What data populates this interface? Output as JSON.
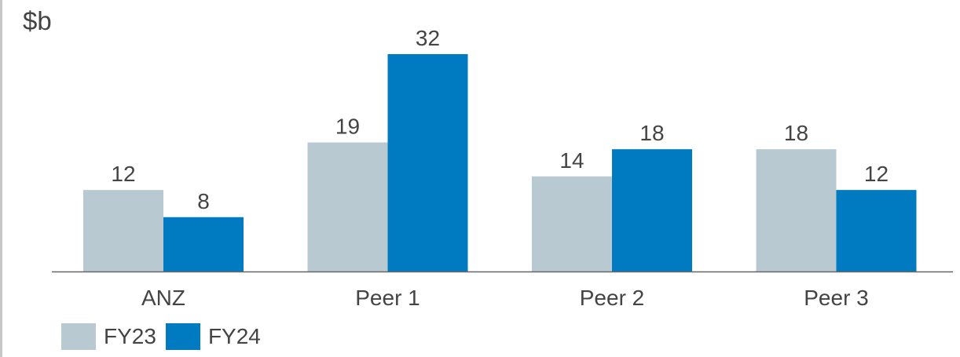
{
  "chart_data": {
    "type": "bar",
    "ylabel": "$b",
    "categories": [
      "ANZ",
      "Peer 1",
      "Peer 2",
      "Peer 3"
    ],
    "series": [
      {
        "name": "FY23",
        "values": [
          12,
          19,
          14,
          18
        ],
        "color": "#b9c9d1"
      },
      {
        "name": "FY24",
        "values": [
          8,
          32,
          18,
          12
        ],
        "color": "#007ac0"
      }
    ],
    "ylim": [
      0,
      32
    ],
    "grid": false,
    "legend": "bottom-left",
    "axis_color": "#666666"
  }
}
